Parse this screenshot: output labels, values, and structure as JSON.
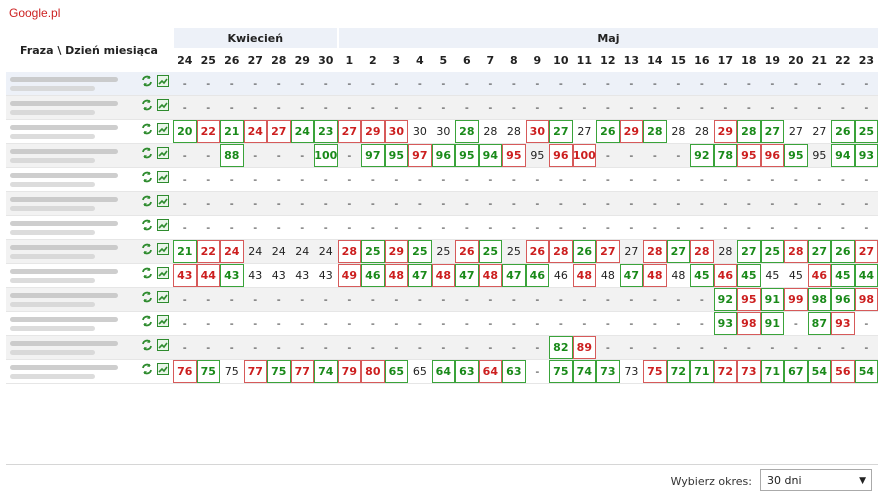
{
  "site": "Google.pl",
  "header": {
    "phrase_col": "Fraza \\ Dzień miesiąca",
    "months": [
      {
        "label": "Kwiecień",
        "span": 7
      },
      {
        "label": "Maj",
        "span": 23
      }
    ],
    "days": [
      "24",
      "25",
      "26",
      "27",
      "28",
      "29",
      "30",
      "1",
      "2",
      "3",
      "4",
      "5",
      "6",
      "7",
      "8",
      "9",
      "10",
      "11",
      "12",
      "13",
      "14",
      "15",
      "16",
      "17",
      "18",
      "19",
      "20",
      "21",
      "22",
      "23"
    ]
  },
  "icons": {
    "refresh": "refresh-icon",
    "chart": "chart-icon"
  },
  "colors": {
    "up": "#1a8a1a",
    "down": "#cc1f1f",
    "month_bg": "#edf1f8"
  },
  "rows": [
    {
      "cells": [
        "-",
        "-",
        "-",
        "-",
        "-",
        "-",
        "-",
        "-",
        "-",
        "-",
        "-",
        "-",
        "-",
        "-",
        "-",
        "-",
        "-",
        "-",
        "-",
        "-",
        "-",
        "-",
        "-",
        "-",
        "-",
        "-",
        "-",
        "-",
        "-",
        "-"
      ],
      "states": [
        "",
        "",
        "",
        "",
        "",
        "",
        "",
        "",
        "",
        "",
        "",
        "",
        "",
        "",
        "",
        "",
        "",
        "",
        "",
        "",
        "",
        "",
        "",
        "",
        "",
        "",
        "",
        "",
        "",
        ""
      ]
    },
    {
      "cells": [
        "-",
        "-",
        "-",
        "-",
        "-",
        "-",
        "-",
        "-",
        "-",
        "-",
        "-",
        "-",
        "-",
        "-",
        "-",
        "-",
        "-",
        "-",
        "-",
        "-",
        "-",
        "-",
        "-",
        "-",
        "-",
        "-",
        "-",
        "-",
        "-",
        "-"
      ],
      "states": [
        "",
        "",
        "",
        "",
        "",
        "",
        "",
        "",
        "",
        "",
        "",
        "",
        "",
        "",
        "",
        "",
        "",
        "",
        "",
        "",
        "",
        "",
        "",
        "",
        "",
        "",
        "",
        "",
        "",
        ""
      ]
    },
    {
      "cells": [
        "20",
        "22",
        "21",
        "24",
        "27",
        "24",
        "23",
        "27",
        "29",
        "30",
        "30",
        "30",
        "28",
        "28",
        "28",
        "30",
        "27",
        "27",
        "26",
        "29",
        "28",
        "28",
        "28",
        "29",
        "28",
        "27",
        "27",
        "27",
        "26",
        "25"
      ],
      "states": [
        "u",
        "d",
        "u",
        "d",
        "d",
        "u",
        "u",
        "d",
        "d",
        "d",
        "s",
        "s",
        "u",
        "s",
        "s",
        "d",
        "u",
        "s",
        "u",
        "d",
        "u",
        "s",
        "s",
        "d",
        "u",
        "u",
        "s",
        "s",
        "u",
        "u"
      ]
    },
    {
      "cells": [
        "-",
        "-",
        "88",
        "-",
        "-",
        "-",
        "100",
        "-",
        "97",
        "95",
        "97",
        "96",
        "95",
        "94",
        "95",
        "95",
        "96",
        "100",
        "-",
        "-",
        "-",
        "-",
        "92",
        "78",
        "95",
        "96",
        "95",
        "95",
        "94",
        "93"
      ],
      "states": [
        "",
        "",
        "u",
        "",
        "",
        "",
        "u",
        "",
        "u",
        "u",
        "d",
        "u",
        "u",
        "u",
        "d",
        "s",
        "d",
        "d",
        "",
        "",
        "",
        "",
        "u",
        "u",
        "d",
        "d",
        "u",
        "s",
        "u",
        "u"
      ]
    },
    {
      "cells": [
        "-",
        "-",
        "-",
        "-",
        "-",
        "-",
        "-",
        "-",
        "-",
        "-",
        "-",
        "-",
        "-",
        "-",
        "-",
        "-",
        "-",
        "-",
        "-",
        "-",
        "-",
        "-",
        "-",
        "-",
        "-",
        "-",
        "-",
        "-",
        "-",
        "-"
      ],
      "states": [
        "",
        "",
        "",
        "",
        "",
        "",
        "",
        "",
        "",
        "",
        "",
        "",
        "",
        "",
        "",
        "",
        "",
        "",
        "",
        "",
        "",
        "",
        "",
        "",
        "",
        "",
        "",
        "",
        "",
        ""
      ]
    },
    {
      "cells": [
        "-",
        "-",
        "-",
        "-",
        "-",
        "-",
        "-",
        "-",
        "-",
        "-",
        "-",
        "-",
        "-",
        "-",
        "-",
        "-",
        "-",
        "-",
        "-",
        "-",
        "-",
        "-",
        "-",
        "-",
        "-",
        "-",
        "-",
        "-",
        "-",
        "-"
      ],
      "states": [
        "",
        "",
        "",
        "",
        "",
        "",
        "",
        "",
        "",
        "",
        "",
        "",
        "",
        "",
        "",
        "",
        "",
        "",
        "",
        "",
        "",
        "",
        "",
        "",
        "",
        "",
        "",
        "",
        "",
        ""
      ]
    },
    {
      "cells": [
        "-",
        "-",
        "-",
        "-",
        "-",
        "-",
        "-",
        "-",
        "-",
        "-",
        "-",
        "-",
        "-",
        "-",
        "-",
        "-",
        "-",
        "-",
        "-",
        "-",
        "-",
        "-",
        "-",
        "-",
        "-",
        "-",
        "-",
        "-",
        "-",
        "-"
      ],
      "states": [
        "",
        "",
        "",
        "",
        "",
        "",
        "",
        "",
        "",
        "",
        "",
        "",
        "",
        "",
        "",
        "",
        "",
        "",
        "",
        "",
        "",
        "",
        "",
        "",
        "",
        "",
        "",
        "",
        "",
        ""
      ]
    },
    {
      "cells": [
        "21",
        "22",
        "24",
        "24",
        "24",
        "24",
        "24",
        "28",
        "25",
        "29",
        "25",
        "25",
        "26",
        "25",
        "25",
        "26",
        "28",
        "26",
        "27",
        "27",
        "28",
        "27",
        "28",
        "28",
        "27",
        "25",
        "28",
        "27",
        "26",
        "27"
      ],
      "states": [
        "u",
        "d",
        "d",
        "s",
        "s",
        "s",
        "s",
        "d",
        "u",
        "d",
        "u",
        "s",
        "d",
        "u",
        "s",
        "d",
        "d",
        "u",
        "d",
        "s",
        "d",
        "u",
        "d",
        "s",
        "u",
        "u",
        "d",
        "u",
        "u",
        "d"
      ]
    },
    {
      "cells": [
        "43",
        "44",
        "43",
        "43",
        "43",
        "43",
        "43",
        "49",
        "46",
        "48",
        "47",
        "48",
        "47",
        "48",
        "47",
        "46",
        "46",
        "48",
        "48",
        "47",
        "48",
        "48",
        "45",
        "46",
        "45",
        "45",
        "45",
        "46",
        "45",
        "44"
      ],
      "states": [
        "d",
        "d",
        "u",
        "s",
        "s",
        "s",
        "s",
        "d",
        "u",
        "d",
        "u",
        "d",
        "u",
        "d",
        "u",
        "u",
        "s",
        "d",
        "s",
        "u",
        "d",
        "s",
        "u",
        "d",
        "u",
        "s",
        "s",
        "d",
        "u",
        "u"
      ]
    },
    {
      "cells": [
        "-",
        "-",
        "-",
        "-",
        "-",
        "-",
        "-",
        "-",
        "-",
        "-",
        "-",
        "-",
        "-",
        "-",
        "-",
        "-",
        "-",
        "-",
        "-",
        "-",
        "-",
        "-",
        "-",
        "92",
        "95",
        "91",
        "99",
        "98",
        "96",
        "98"
      ],
      "states": [
        "",
        "",
        "",
        "",
        "",
        "",
        "",
        "",
        "",
        "",
        "",
        "",
        "",
        "",
        "",
        "",
        "",
        "",
        "",
        "",
        "",
        "",
        "",
        "u",
        "d",
        "u",
        "d",
        "u",
        "u",
        "d"
      ]
    },
    {
      "cells": [
        "-",
        "-",
        "-",
        "-",
        "-",
        "-",
        "-",
        "-",
        "-",
        "-",
        "-",
        "-",
        "-",
        "-",
        "-",
        "-",
        "-",
        "-",
        "-",
        "-",
        "-",
        "-",
        "-",
        "93",
        "98",
        "91",
        "-",
        "87",
        "93",
        "-"
      ],
      "states": [
        "",
        "",
        "",
        "",
        "",
        "",
        "",
        "",
        "",
        "",
        "",
        "",
        "",
        "",
        "",
        "",
        "",
        "",
        "",
        "",
        "",
        "",
        "",
        "u",
        "d",
        "u",
        "",
        "u",
        "d",
        ""
      ]
    },
    {
      "cells": [
        "-",
        "-",
        "-",
        "-",
        "-",
        "-",
        "-",
        "-",
        "-",
        "-",
        "-",
        "-",
        "-",
        "-",
        "-",
        "-",
        "82",
        "89",
        "-",
        "-",
        "-",
        "-",
        "-",
        "-",
        "-",
        "-",
        "-",
        "-",
        "-",
        "-"
      ],
      "states": [
        "",
        "",
        "",
        "",
        "",
        "",
        "",
        "",
        "",
        "",
        "",
        "",
        "",
        "",
        "",
        "",
        "u",
        "d",
        "",
        "",
        "",
        "",
        "",
        "",
        "",
        "",
        "",
        "",
        "",
        ""
      ]
    },
    {
      "cells": [
        "76",
        "75",
        "75",
        "77",
        "75",
        "77",
        "74",
        "79",
        "80",
        "65",
        "65",
        "64",
        "63",
        "64",
        "63",
        "-",
        "75",
        "74",
        "73",
        "73",
        "75",
        "72",
        "71",
        "72",
        "73",
        "71",
        "67",
        "54",
        "56",
        "54"
      ],
      "states": [
        "d",
        "u",
        "s",
        "d",
        "u",
        "d",
        "u",
        "d",
        "d",
        "u",
        "s",
        "u",
        "u",
        "d",
        "u",
        "",
        "u",
        "u",
        "u",
        "s",
        "d",
        "u",
        "u",
        "d",
        "d",
        "u",
        "u",
        "u",
        "d",
        "u"
      ]
    }
  ],
  "footer": {
    "label": "Wybierz okres:",
    "select_value": "30 dni"
  }
}
